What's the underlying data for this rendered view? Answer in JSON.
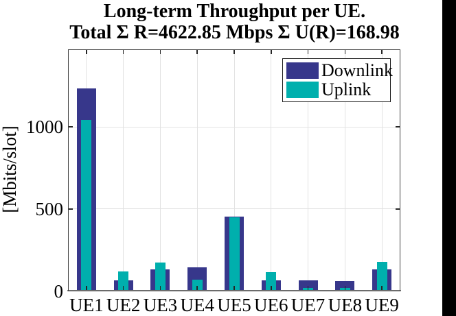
{
  "title": {
    "line1": "Long-term Throughput per UE.",
    "line2": "Total Σ R=4622.85 Mbps Σ U(R)=168.98"
  },
  "chart_data": {
    "type": "bar",
    "mode": "overlaid",
    "title": "Long-term Throughput per UE. Total Σ R=4622.85 Mbps Σ U(R)=168.98",
    "categories": [
      "UE1",
      "UE2",
      "UE3",
      "UE4",
      "UE5",
      "UE6",
      "UE7",
      "UE8",
      "UE9"
    ],
    "series": [
      {
        "name": "Downlink",
        "color": "#37378B",
        "values": [
          1235,
          65,
          132,
          145,
          452,
          66,
          63,
          60,
          131
        ]
      },
      {
        "name": "Uplink",
        "color": "#00AFAD",
        "values": [
          1040,
          118,
          172,
          70,
          450,
          116,
          20,
          18,
          176
        ]
      }
    ],
    "xlabel": "",
    "ylabel": "[Mbits/slot]",
    "yticks": [
      0,
      500,
      1000
    ],
    "ylim": [
      0,
      1473
    ],
    "grid": true,
    "legend_position": "top-right"
  },
  "colors": {
    "downlink": "#37378B",
    "uplink": "#00AFAD",
    "grid": "#E2E2E2",
    "axis_box": "#3F3F3F",
    "baseline": "#7F7F7F",
    "tick": "#262626",
    "text": "#000000",
    "background": "#FFFFFF",
    "right_strip": "#000000"
  }
}
